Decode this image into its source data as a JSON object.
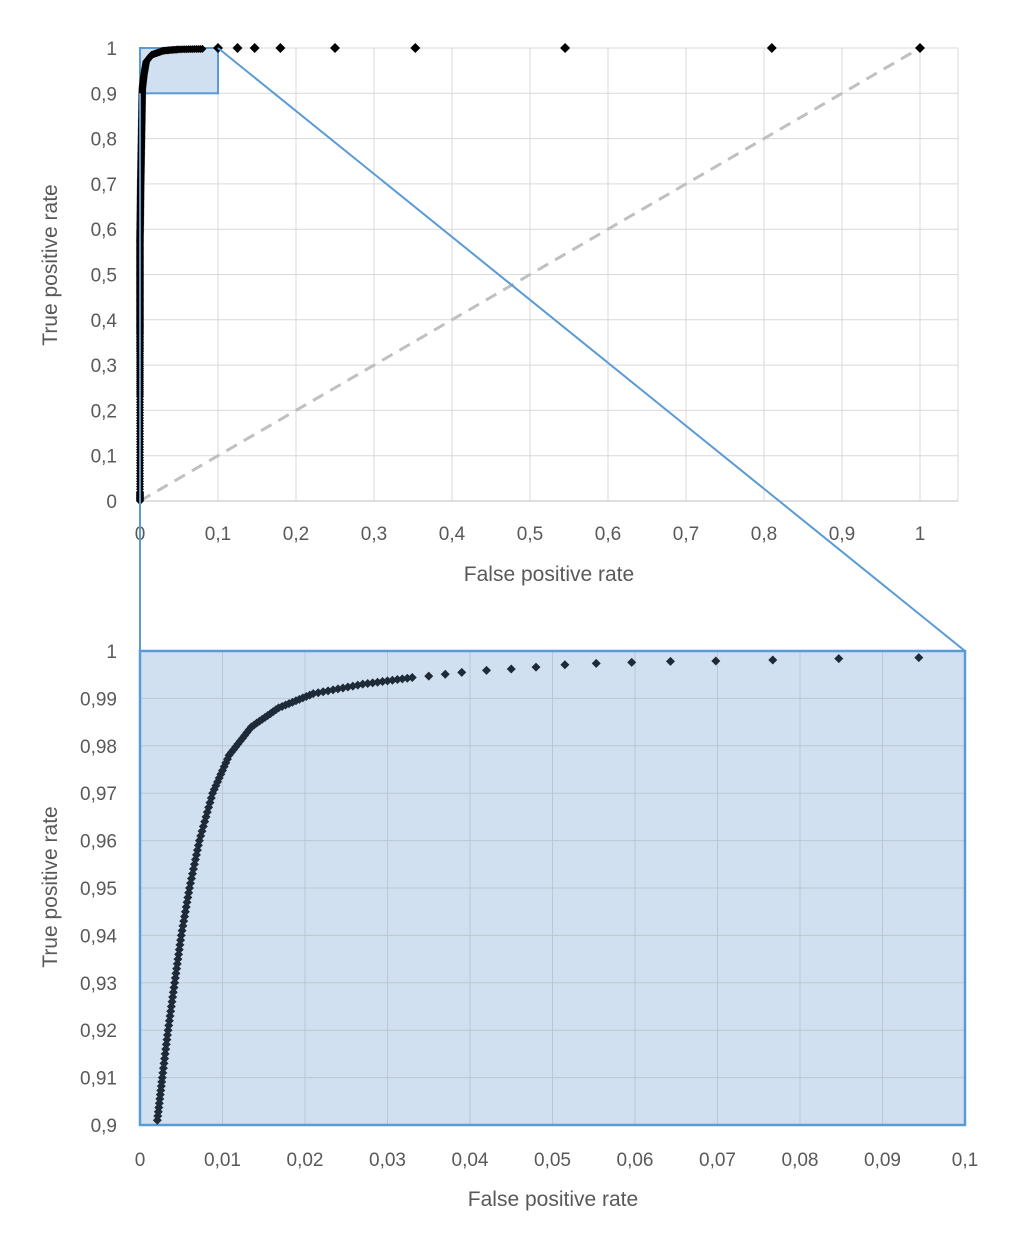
{
  "chart_data": [
    {
      "type": "scatter",
      "id": "roc-full",
      "xlabel": "False positive rate",
      "ylabel": "True positive rate",
      "xlim": [
        0,
        1.05
      ],
      "ylim": [
        0,
        1
      ],
      "xticks": [
        "0",
        "0,1",
        "0,2",
        "0,3",
        "0,4",
        "0,5",
        "0,6",
        "0,7",
        "0,8",
        "0,9",
        "1"
      ],
      "yticks": [
        "0",
        "0,1",
        "0,2",
        "0,3",
        "0,4",
        "0,5",
        "0,6",
        "0,7",
        "0,8",
        "0,9",
        "1"
      ],
      "grid": true,
      "marker": "diamond",
      "marker_color": "#000000",
      "reference_line": {
        "from": [
          0,
          0
        ],
        "to": [
          1,
          1
        ],
        "style": "dashed",
        "color": "#c0c0c0"
      },
      "zoom_box": {
        "x": [
          0,
          0.1
        ],
        "y": [
          0.9,
          1
        ],
        "color": "#5b9bd5",
        "fill": "#d0e0f0"
      },
      "curve_points": [
        [
          0,
          0
        ],
        [
          0,
          0.02
        ],
        [
          0,
          0.09
        ],
        [
          0,
          0.16
        ],
        [
          0,
          0.23
        ],
        [
          0,
          0.28
        ],
        [
          0,
          0.33
        ],
        [
          0,
          0.37
        ],
        [
          0,
          0.4
        ],
        [
          0,
          0.43
        ],
        [
          0,
          0.46
        ],
        [
          0,
          0.49
        ],
        [
          0,
          0.52
        ],
        [
          0,
          0.55
        ],
        [
          0,
          0.58
        ],
        [
          0.0003,
          0.61
        ],
        [
          0.0005,
          0.64
        ],
        [
          0.0007,
          0.67
        ],
        [
          0.0009,
          0.7
        ],
        [
          0.0012,
          0.73
        ],
        [
          0.0015,
          0.76
        ],
        [
          0.0018,
          0.79
        ],
        [
          0.0021,
          0.82
        ],
        [
          0.0024,
          0.85
        ],
        [
          0.0027,
          0.88
        ],
        [
          0.003,
          0.91
        ],
        [
          0.005,
          0.94
        ],
        [
          0.008,
          0.97
        ],
        [
          0.015,
          0.985
        ],
        [
          0.03,
          0.994
        ],
        [
          0.05,
          0.997
        ],
        [
          0.08,
          0.998
        ]
      ],
      "points": [
        [
          0.1,
          1
        ],
        [
          0.125,
          1
        ],
        [
          0.147,
          1
        ],
        [
          0.18,
          1
        ],
        [
          0.25,
          1
        ],
        [
          0.353,
          1
        ],
        [
          0.545,
          1
        ],
        [
          0.81,
          1
        ],
        [
          1,
          1
        ]
      ]
    },
    {
      "type": "scatter",
      "id": "roc-zoom",
      "xlabel": "False positive rate",
      "ylabel": "True positive rate",
      "xlim": [
        0,
        0.1
      ],
      "ylim": [
        0.9,
        1
      ],
      "xticks": [
        "0",
        "0,01",
        "0,02",
        "0,03",
        "0,04",
        "0,05",
        "0,06",
        "0,07",
        "0,08",
        "0,09",
        "0,1"
      ],
      "yticks": [
        "0,9",
        "0,91",
        "0,92",
        "0,93",
        "0,94",
        "0,95",
        "0,96",
        "0,97",
        "0,98",
        "0,99",
        "1"
      ],
      "grid": true,
      "marker": "diamond",
      "marker_color": "#1f2a38",
      "background": "#d0e0f0",
      "border_color": "#5b9bd5",
      "anchors": [
        [
          0.0021,
          0.901
        ],
        [
          0.0027,
          0.91
        ],
        [
          0.0034,
          0.92
        ],
        [
          0.0042,
          0.93
        ],
        [
          0.005,
          0.94
        ],
        [
          0.006,
          0.95
        ],
        [
          0.0072,
          0.96
        ],
        [
          0.0088,
          0.97
        ],
        [
          0.0108,
          0.978
        ],
        [
          0.0135,
          0.984
        ],
        [
          0.0168,
          0.988
        ],
        [
          0.021,
          0.991
        ],
        [
          0.027,
          0.993
        ],
        [
          0.033,
          0.9944
        ]
      ],
      "tail_points": [
        [
          0.035,
          0.9947
        ],
        [
          0.037,
          0.9951
        ],
        [
          0.039,
          0.9955
        ],
        [
          0.042,
          0.9959
        ],
        [
          0.045,
          0.9962
        ],
        [
          0.048,
          0.9966
        ],
        [
          0.0515,
          0.9971
        ],
        [
          0.0553,
          0.9974
        ],
        [
          0.0596,
          0.9976
        ],
        [
          0.0643,
          0.9978
        ],
        [
          0.0698,
          0.9979
        ],
        [
          0.0767,
          0.9981
        ],
        [
          0.0847,
          0.9984
        ],
        [
          0.0944,
          0.9986
        ]
      ]
    }
  ]
}
